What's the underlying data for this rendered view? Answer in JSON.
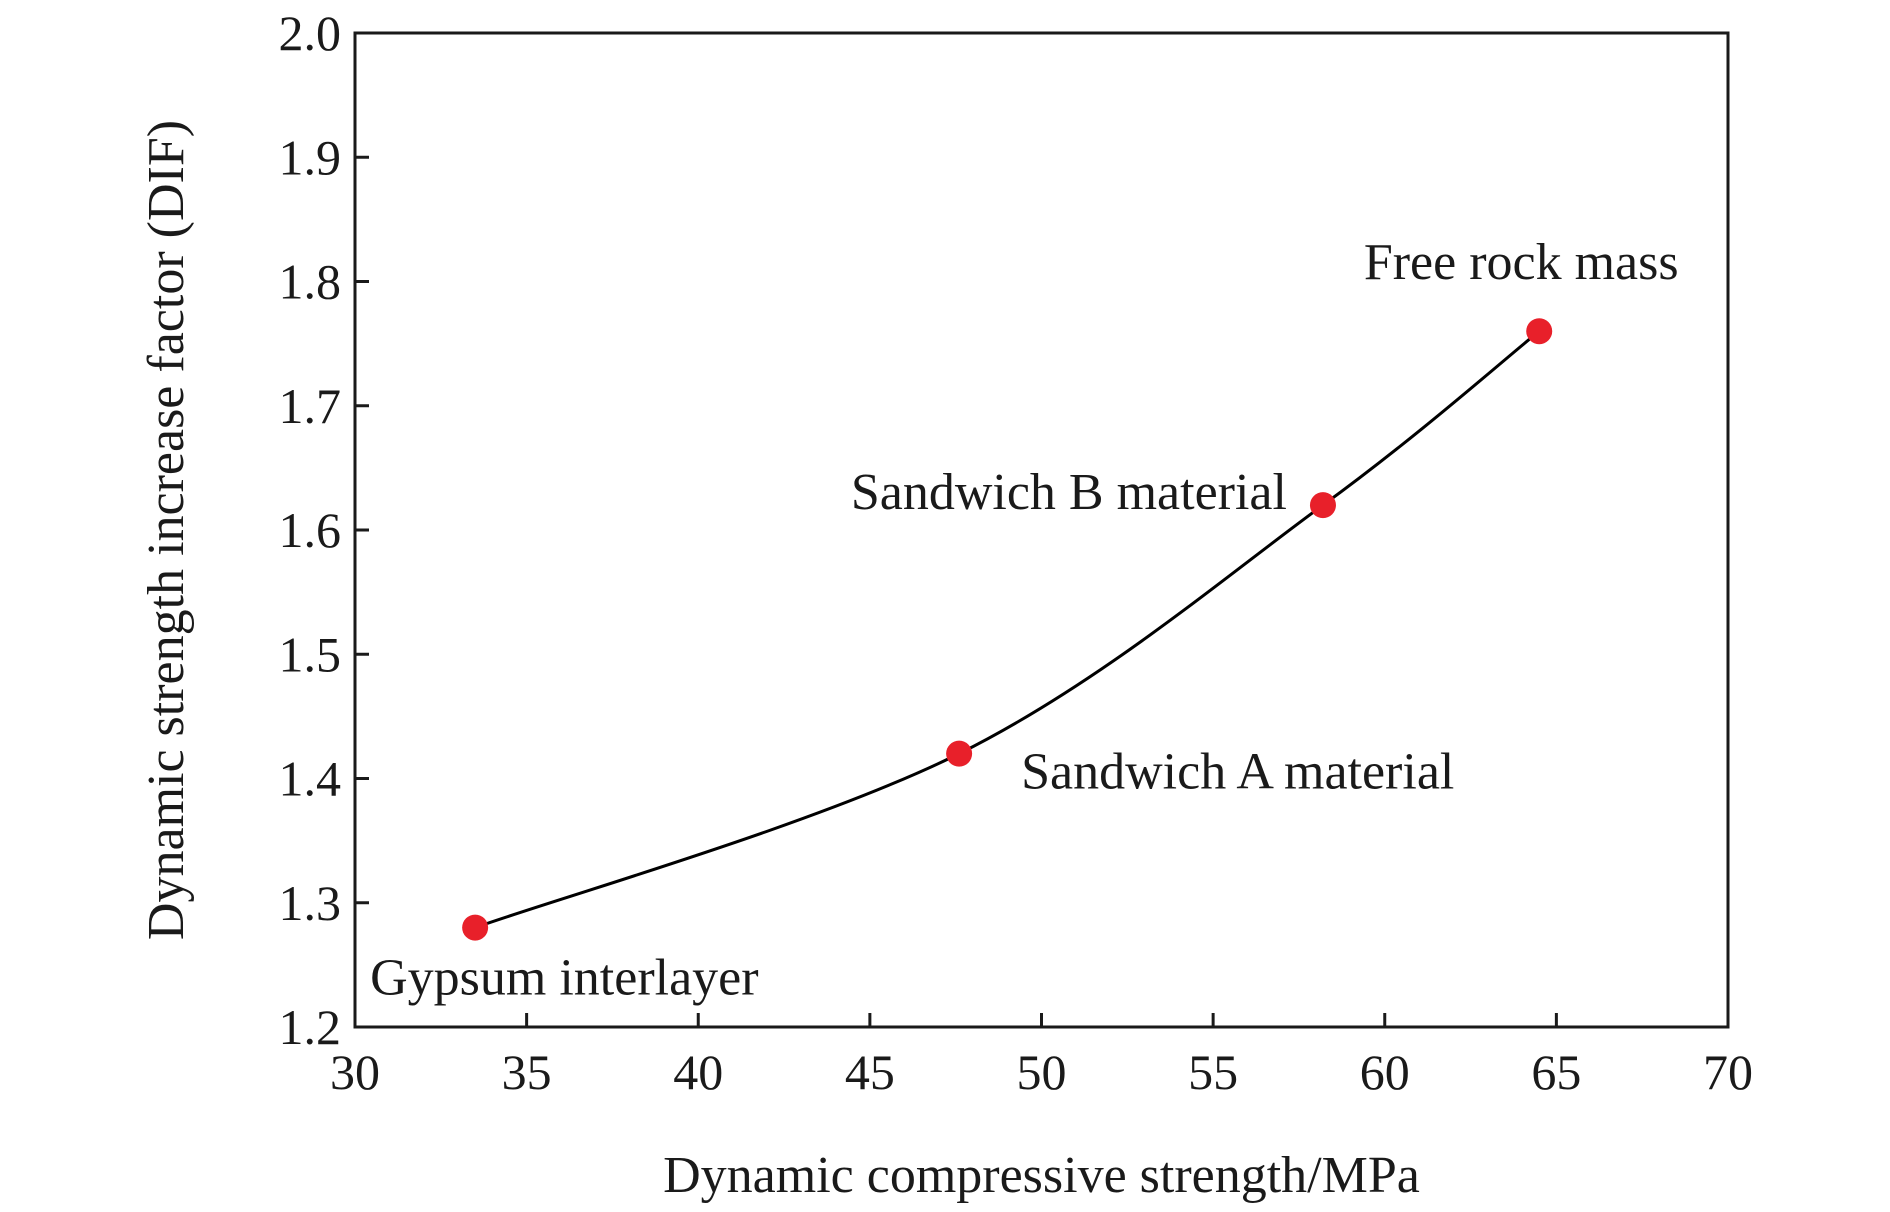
{
  "chart_data": {
    "type": "scatter",
    "title": "",
    "xlabel": "Dynamic compressive strength/MPa",
    "ylabel": "Dynamic strength increase factor (DIF)",
    "xlim": [
      30,
      70
    ],
    "ylim": [
      1.2,
      2.0
    ],
    "xticks": [
      "30",
      "35",
      "40",
      "45",
      "50",
      "55",
      "60",
      "65",
      "70"
    ],
    "yticks": [
      "1.2",
      "1.3",
      "1.4",
      "1.5",
      "1.6",
      "1.7",
      "1.8",
      "1.9",
      "2.0"
    ],
    "grid": false,
    "legend": "none",
    "series": [
      {
        "x": [
          33.5,
          47.6,
          58.2,
          64.5
        ],
        "y": [
          1.28,
          1.42,
          1.62,
          1.76
        ],
        "labels": [
          "Gypsum interlayer",
          "Sandwich A material",
          "Sandwich B material",
          "Free rock mass"
        ],
        "marker_color": "#e8202a",
        "line_color": "#000000",
        "fit_line": "smooth curve"
      }
    ]
  }
}
